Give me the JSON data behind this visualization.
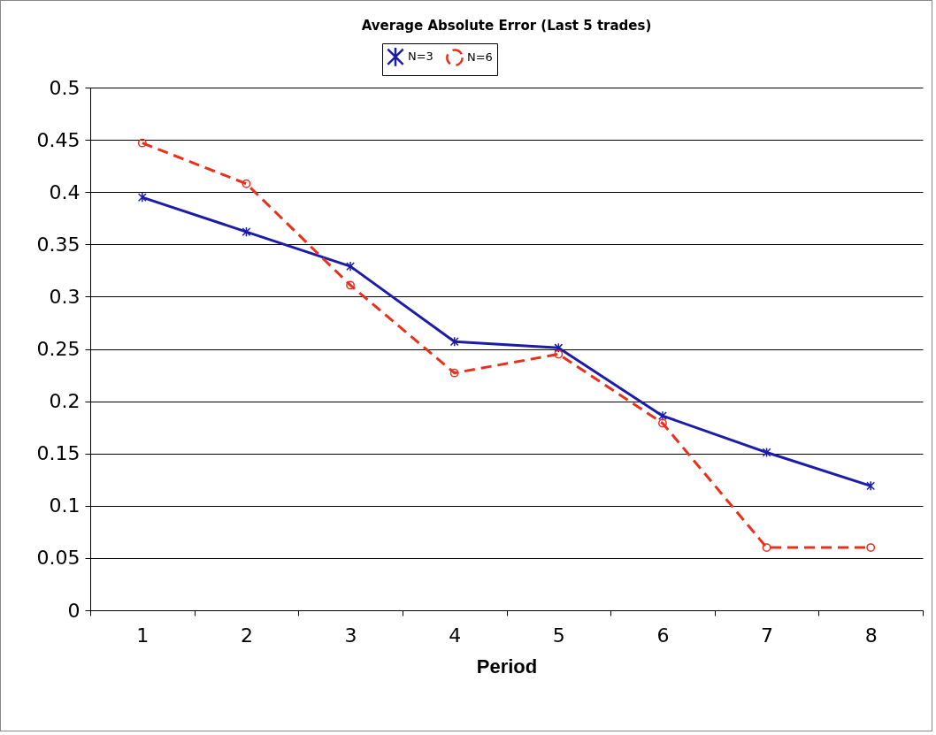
{
  "chart_data": {
    "type": "line",
    "title": "Average Absolute Error (Last 5 trades)",
    "xlabel": "Period",
    "categories": [
      "1",
      "2",
      "3",
      "4",
      "5",
      "6",
      "7",
      "8"
    ],
    "series": [
      {
        "name": "N=3",
        "color": "#1c1ca8",
        "marker": "cross",
        "line_style": "solid",
        "values": [
          0.395,
          0.362,
          0.329,
          0.257,
          0.251,
          0.186,
          0.151,
          0.119
        ]
      },
      {
        "name": "N=6",
        "color": "#e8301c",
        "marker": "circle",
        "line_style": "dashed",
        "values": [
          0.447,
          0.408,
          0.311,
          0.227,
          0.245,
          0.179,
          0.06,
          0.06
        ]
      }
    ],
    "ylim": [
      0,
      0.5
    ],
    "yticks": [
      0,
      0.05,
      0.1,
      0.15,
      0.2,
      0.25,
      0.3,
      0.35,
      0.4,
      0.45,
      0.5
    ],
    "grid": "y",
    "legend": "top"
  }
}
